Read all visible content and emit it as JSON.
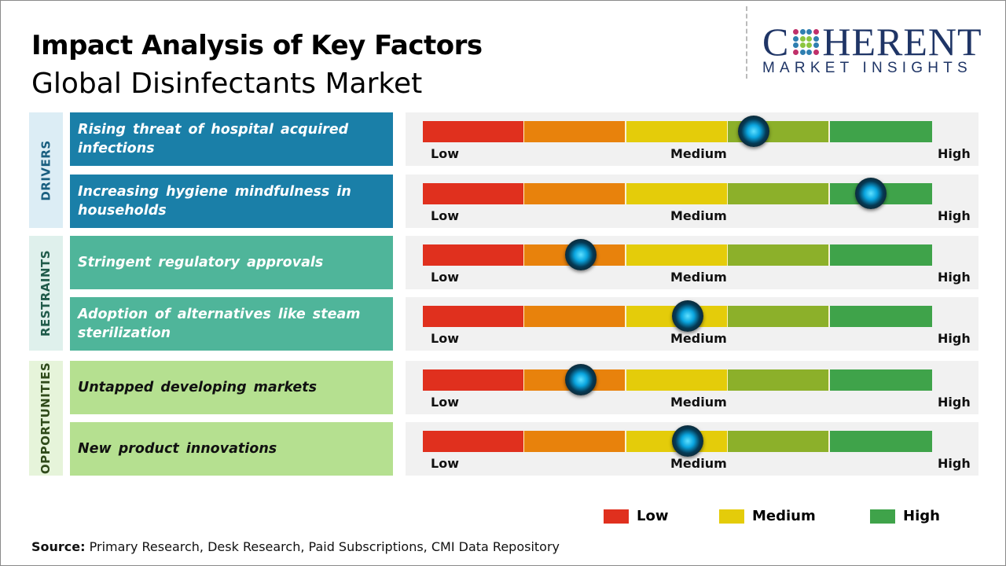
{
  "header": {
    "title": "Impact Analysis of Key Factors",
    "subtitle": "Global Disinfectants Market"
  },
  "logo": {
    "word": "COHERENT",
    "word_start": "C",
    "word_end": "HERENT",
    "tagline": "MARKET INSIGHTS"
  },
  "scale": {
    "low": "Low",
    "medium": "Medium",
    "high": "High",
    "segment_colors": [
      "#e0301e",
      "#e8820c",
      "#e4cc0a",
      "#8cb02a",
      "#3fa34a"
    ]
  },
  "categories": [
    {
      "label": "DRIVERS",
      "bg": "#dcedf5",
      "color": "#1a5f80",
      "row_bg": "#1a7fa8",
      "row_color": "#ffffff"
    },
    {
      "label": "RESTRAINTS",
      "bg": "#dff0ec",
      "color": "#1f5a4a",
      "row_bg": "#4fb59a",
      "row_color": "#ffffff"
    },
    {
      "label": "OPPORTUNITIES",
      "bg": "#e6f4da",
      "color": "#2f4a1a",
      "row_bg": "#b5e090",
      "row_color": "#111111"
    }
  ],
  "factors": [
    {
      "category": 0,
      "text": "Rising threat of hospital acquired infections",
      "impact": 0.65
    },
    {
      "category": 0,
      "text": "Increasing hygiene mindfulness in households",
      "impact": 0.88
    },
    {
      "category": 1,
      "text": "Stringent regulatory approvals",
      "impact": 0.31
    },
    {
      "category": 1,
      "text": "Adoption of alternatives like steam sterilization",
      "impact": 0.52
    },
    {
      "category": 2,
      "text": "Untapped developing markets",
      "impact": 0.31
    },
    {
      "category": 2,
      "text": "New product innovations",
      "impact": 0.52
    }
  ],
  "legend": [
    {
      "label": "Low",
      "color": "#e0301e"
    },
    {
      "label": "Medium",
      "color": "#e4cc0a"
    },
    {
      "label": "High",
      "color": "#3fa34a"
    }
  ],
  "source": {
    "label": "Source:",
    "text": " Primary Research, Desk Research, Paid Subscriptions, CMI Data Repository"
  }
}
